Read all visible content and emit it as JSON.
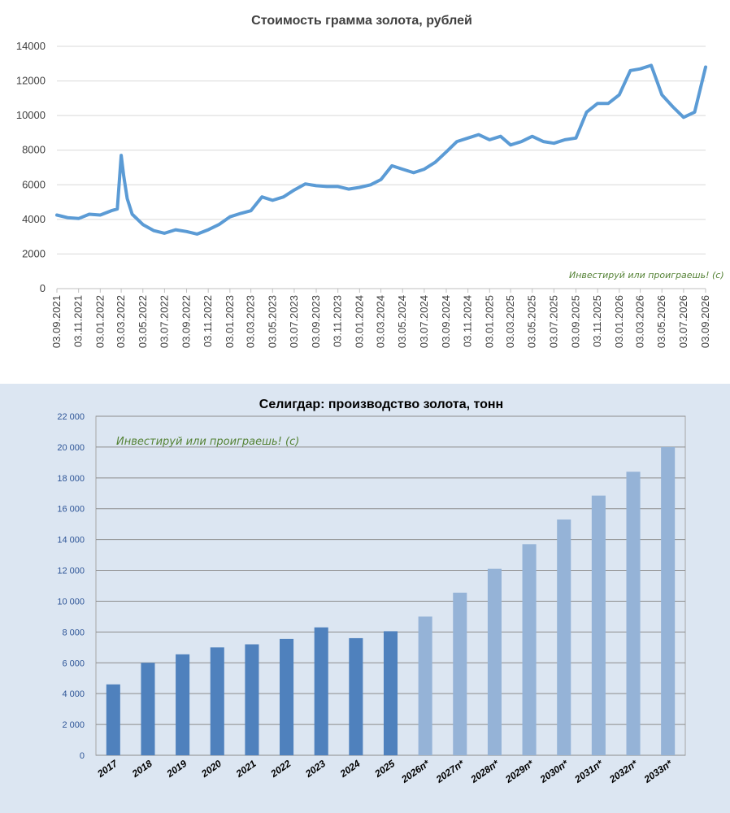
{
  "watermark": "Инвестируй или проиграешь! (с)",
  "chart_data": [
    {
      "type": "line",
      "title": "Стоимость грамма золота, рублей",
      "xlabel": "",
      "ylabel": "",
      "ylim": [
        0,
        14000
      ],
      "yticks": [
        0,
        2000,
        4000,
        6000,
        8000,
        10000,
        12000,
        14000
      ],
      "xticks": [
        "03.09.2021",
        "03.11.2021",
        "03.01.2022",
        "03.03.2022",
        "03.05.2022",
        "03.07.2022",
        "03.09.2022",
        "03.11.2022",
        "03.01.2023",
        "03.03.2023",
        "03.05.2023",
        "03.07.2023",
        "03.09.2023",
        "03.11.2023",
        "03.01.2024",
        "03.03.2024",
        "03.05.2024",
        "03.07.2024",
        "03.09.2024",
        "03.11.2024",
        "03.01.2025",
        "03.03.2025",
        "03.05.2025",
        "03.07.2025",
        "03.09.2025",
        "03.11.2025",
        "03.01.2026",
        "03.03.2026",
        "03.05.2026",
        "03.07.2026",
        "03.09.2026"
      ],
      "grid": true,
      "line_color": "#5b9bd5",
      "series": [
        {
          "x": [
            "03.09.2021",
            "03.10.2021",
            "03.11.2021",
            "03.12.2021",
            "03.01.2022",
            "03.02.2022",
            "20.02.2022",
            "03.03.2022",
            "10.03.2022",
            "20.03.2022",
            "03.04.2022",
            "03.05.2022",
            "03.06.2022",
            "03.07.2022",
            "03.08.2022",
            "03.09.2022",
            "03.10.2022",
            "03.11.2022",
            "03.12.2022",
            "03.01.2023",
            "03.02.2023",
            "03.03.2023",
            "03.04.2023",
            "03.05.2023",
            "03.06.2023",
            "03.07.2023",
            "03.08.2023",
            "03.09.2023",
            "03.10.2023",
            "03.11.2023",
            "03.12.2023",
            "03.01.2024",
            "03.02.2024",
            "03.03.2024",
            "03.04.2024",
            "03.05.2024",
            "03.06.2024",
            "03.07.2024",
            "03.08.2024",
            "03.09.2024",
            "03.10.2024",
            "03.11.2024",
            "03.12.2024",
            "03.01.2025",
            "03.02.2025",
            "03.03.2025",
            "03.04.2025",
            "03.05.2025",
            "03.06.2025",
            "03.07.2025",
            "03.08.2025",
            "03.09.2025",
            "03.10.2025",
            "03.11.2025",
            "03.12.2025",
            "03.01.2026",
            "03.02.2026",
            "03.03.2026",
            "03.04.2026",
            "03.05.2026",
            "03.06.2026",
            "03.07.2026",
            "03.08.2026",
            "03.09.2026"
          ],
          "values": [
            4250,
            4100,
            4050,
            4300,
            4250,
            4500,
            4600,
            7700,
            6500,
            5200,
            4300,
            3700,
            3350,
            3200,
            3400,
            3300,
            3150,
            3400,
            3700,
            4150,
            4350,
            4500,
            5300,
            5100,
            5300,
            5700,
            6050,
            5950,
            5900,
            5900,
            5750,
            5850,
            6000,
            6300,
            7100,
            6900,
            6700,
            6900,
            7300,
            7900,
            8500,
            8700,
            8900,
            8600,
            8800,
            8300,
            8500,
            8800,
            8500,
            8400,
            8600,
            8700,
            10200,
            10700,
            10700,
            11200,
            12600,
            12700,
            12900,
            11200,
            10500,
            9900,
            10200,
            12800
          ]
        }
      ]
    },
    {
      "type": "bar",
      "title": "Селигдар: производство золота, тонн",
      "xlabel": "",
      "ylabel": "",
      "ylim": [
        0,
        22000
      ],
      "yticks": [
        "0",
        "2 000",
        "4 000",
        "6 000",
        "8 000",
        "10 000",
        "12 000",
        "14 000",
        "16 000",
        "18 000",
        "20 000",
        "22 000"
      ],
      "categories": [
        "2017",
        "2018",
        "2019",
        "2020",
        "2021",
        "2022",
        "2023",
        "2024",
        "2025",
        "2026п*",
        "2027п*",
        "2028п*",
        "2029п*",
        "2030п*",
        "2031п*",
        "2032п*",
        "2033п*"
      ],
      "values": [
        4600,
        6000,
        6550,
        7000,
        7200,
        7550,
        8300,
        7600,
        8050,
        9000,
        10550,
        12100,
        13700,
        15300,
        16850,
        18400,
        20000
      ],
      "colors": {
        "actual": "#4f81bd",
        "forecast": "#95b3d7"
      },
      "forecast_from_index": 9,
      "grid": true
    }
  ]
}
